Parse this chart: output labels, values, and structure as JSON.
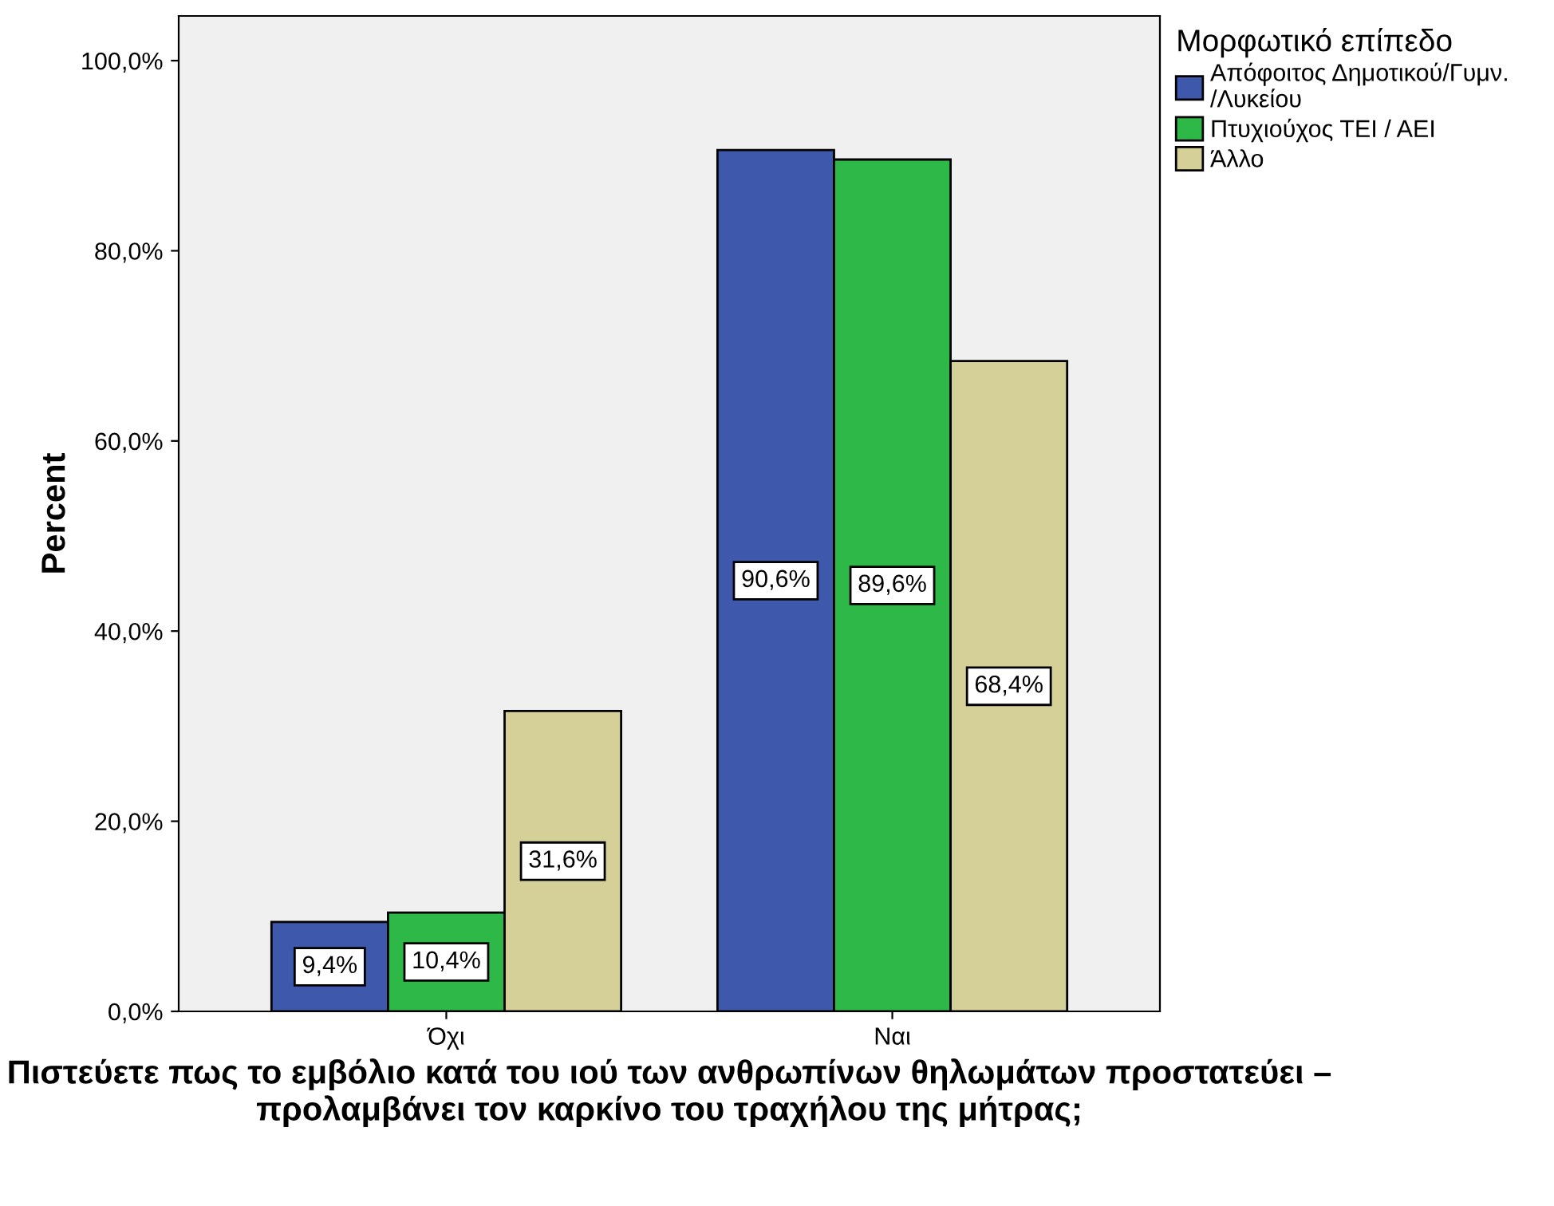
{
  "chart_data": {
    "type": "bar",
    "xlabel": "Πιστεύετε πως το εμβόλιο κατά του ιού των ανθρωπίνων θηλωμάτων προστατεύει – προλαμβάνει τον καρκίνο του τραχήλου της μήτρας;",
    "ylabel": "Percent",
    "legend_title": "Μορφωτικό επίπεδο",
    "categories": [
      "Όχι",
      "Ναι"
    ],
    "series": [
      {
        "name": "Απόφοιτος Δημοτικού/Γυμν.\n/Λυκείου",
        "color": "#3e58ac",
        "values": [
          9.4,
          90.6
        ],
        "value_labels": [
          "9,4%",
          "90,6%"
        ]
      },
      {
        "name": "Πτυχιούχος ΤΕΙ / ΑΕΙ",
        "color": "#2eb848",
        "values": [
          10.4,
          89.6
        ],
        "value_labels": [
          "10,4%",
          "89,6%"
        ]
      },
      {
        "name": "Άλλο",
        "color": "#d5cf98",
        "values": [
          31.6,
          68.4
        ],
        "value_labels": [
          "31,6%",
          "68,4%"
        ]
      }
    ],
    "ylim": [
      0,
      104.7
    ],
    "yticks": [
      {
        "value": 0,
        "label": "0,0%"
      },
      {
        "value": 20,
        "label": "20,0%"
      },
      {
        "value": 40,
        "label": "40,0%"
      },
      {
        "value": 60,
        "label": "60,0%"
      },
      {
        "value": 80,
        "label": "80,0%"
      },
      {
        "value": 100,
        "label": "100,0%"
      }
    ],
    "grid": false,
    "legend": "top right"
  }
}
